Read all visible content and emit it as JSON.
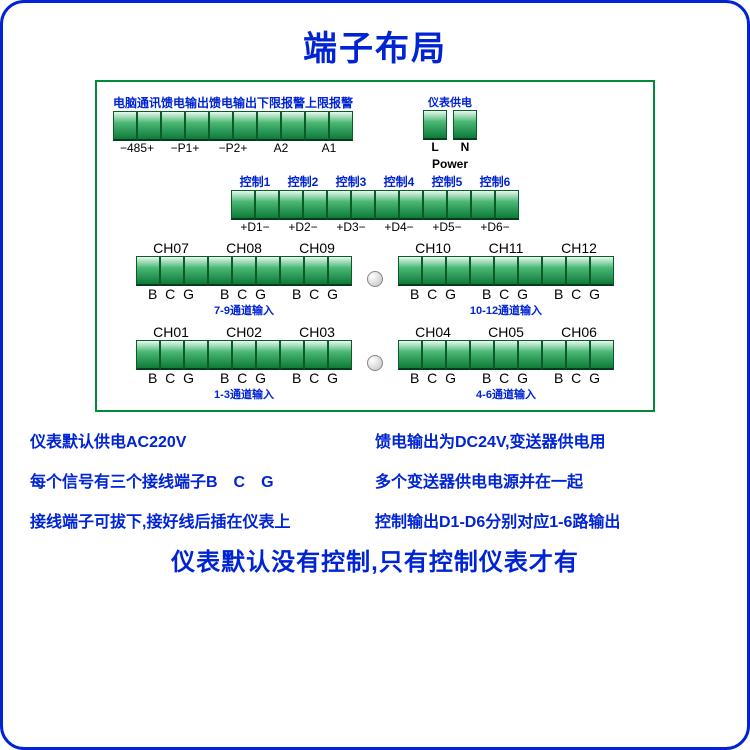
{
  "title": "端子布局",
  "colors": {
    "border": "#0024d4",
    "panel": "#008a3a",
    "term_top": "#e8f8ee",
    "term_mid": "#4ab874",
    "term_dark": "#0f7a3a"
  },
  "row1": {
    "top_labels": [
      "电脑通讯",
      "馈电输出",
      "馈电输出",
      "下限报警",
      "上限报警"
    ],
    "bottom_labels": [
      "−485+",
      "−P1+",
      "−P2+",
      "A2",
      "A1"
    ],
    "power_top": "仪表供电",
    "power_LN": [
      "L",
      "N"
    ],
    "power_label": "Power"
  },
  "row2": {
    "top_labels": [
      "控制1",
      "控制2",
      "控制3",
      "控制4",
      "控制5",
      "控制6"
    ],
    "bottom_labels": [
      "+D1−",
      "+D2−",
      "+D3−",
      "+D4−",
      "+D5−",
      "+D6−"
    ]
  },
  "ch_rows": [
    {
      "left": {
        "heads": [
          "CH07",
          "CH08",
          "CH09"
        ],
        "bcg": [
          "B C G",
          "B C G",
          "B C G"
        ],
        "caption": "7-9通道输入"
      },
      "right": {
        "heads": [
          "CH10",
          "CH11",
          "CH12"
        ],
        "bcg": [
          "B C G",
          "B C G",
          "B C G"
        ],
        "caption": "10-12通道输入"
      }
    },
    {
      "left": {
        "heads": [
          "CH01",
          "CH02",
          "CH03"
        ],
        "bcg": [
          "B C G",
          "B C G",
          "B C G"
        ],
        "caption": "1-3通道输入"
      },
      "right": {
        "heads": [
          "CH04",
          "CH05",
          "CH06"
        ],
        "bcg": [
          "B C G",
          "B C G",
          "B C G"
        ],
        "caption": "4-6通道输入"
      }
    }
  ],
  "notes": [
    "仪表默认供电AC220V",
    "馈电输出为DC24V,变送器供电用",
    "每个信号有三个接线端子B　C　G",
    "多个变送器供电电源并在一起",
    "接线端子可拔下,接好线后插在仪表上",
    "控制输出D1-D6分别对应1-6路输出"
  ],
  "final": "仪表默认没有控制,只有控制仪表才有"
}
